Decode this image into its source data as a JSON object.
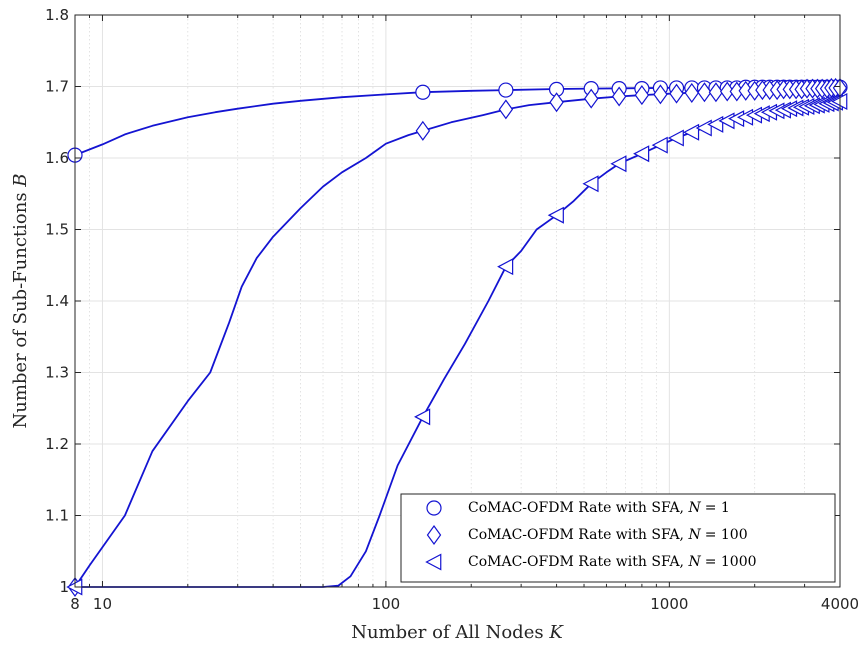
{
  "chart_data": {
    "type": "line",
    "xlabel": "Number of All Nodes",
    "xlabel_var": "K",
    "ylabel": "Number of Sub-Functions",
    "ylabel_var": "B",
    "xscale": "log",
    "xlim": [
      8,
      4000
    ],
    "ylim": [
      1,
      1.8
    ],
    "xticks": [
      8,
      10,
      100,
      1000,
      4000
    ],
    "xtick_labels": [
      "8",
      "10",
      "100",
      "1000",
      "4000"
    ],
    "yticks": [
      1,
      1.1,
      1.2,
      1.3,
      1.4,
      1.5,
      1.6,
      1.7,
      1.8
    ],
    "ytick_labels": [
      "1",
      "1.1",
      "1.2",
      "1.3",
      "1.4",
      "1.5",
      "1.6",
      "1.7",
      "1.8"
    ],
    "grid": true,
    "legend_position": "bottom-right",
    "line_color": "#1414d2",
    "series": [
      {
        "name": "CoMAC-OFDM Rate with SFA, N = 1",
        "legend_prefix": "CoMAC-OFDM Rate with SFA, ",
        "legend_var": "N",
        "legend_value": "= 1",
        "marker": "circle",
        "line": [
          [
            8,
            1.604
          ],
          [
            10,
            1.619
          ],
          [
            12,
            1.633
          ],
          [
            15,
            1.645
          ],
          [
            20,
            1.657
          ],
          [
            25,
            1.664
          ],
          [
            30,
            1.669
          ],
          [
            40,
            1.676
          ],
          [
            50,
            1.68
          ],
          [
            70,
            1.685
          ],
          [
            100,
            1.689
          ],
          [
            135,
            1.692
          ],
          [
            200,
            1.694
          ],
          [
            265,
            1.695
          ],
          [
            400,
            1.6965
          ],
          [
            530,
            1.697
          ],
          [
            1000,
            1.698
          ],
          [
            2000,
            1.6985
          ],
          [
            4000,
            1.699
          ]
        ],
        "markers": [
          [
            8,
            1.604
          ],
          [
            135,
            1.692
          ],
          [
            265,
            1.695
          ],
          [
            400,
            1.696
          ],
          [
            530,
            1.697
          ],
          [
            665,
            1.697
          ],
          [
            800,
            1.697
          ],
          [
            930,
            1.698
          ],
          [
            1060,
            1.698
          ],
          [
            1200,
            1.698
          ],
          [
            1330,
            1.698
          ],
          [
            1460,
            1.698
          ],
          [
            1600,
            1.698
          ],
          [
            1730,
            1.698
          ],
          [
            1860,
            1.699
          ],
          [
            2000,
            1.699
          ],
          [
            2130,
            1.699
          ],
          [
            2260,
            1.699
          ],
          [
            2400,
            1.699
          ],
          [
            2530,
            1.699
          ],
          [
            2660,
            1.699
          ],
          [
            2800,
            1.699
          ],
          [
            2930,
            1.699
          ],
          [
            3060,
            1.699
          ],
          [
            3200,
            1.699
          ],
          [
            3330,
            1.699
          ],
          [
            3460,
            1.699
          ],
          [
            3600,
            1.699
          ],
          [
            3730,
            1.699
          ],
          [
            3860,
            1.699
          ],
          [
            4000,
            1.699
          ]
        ]
      },
      {
        "name": "CoMAC-OFDM Rate with SFA, N = 100",
        "legend_prefix": "CoMAC-OFDM Rate with SFA, ",
        "legend_var": "N",
        "legend_value": "= 100",
        "marker": "diamond",
        "line": [
          [
            8,
            1.0
          ],
          [
            9,
            1.03
          ],
          [
            12,
            1.1
          ],
          [
            15,
            1.19
          ],
          [
            20,
            1.26
          ],
          [
            24,
            1.3
          ],
          [
            28,
            1.37
          ],
          [
            31,
            1.42
          ],
          [
            35,
            1.46
          ],
          [
            40,
            1.49
          ],
          [
            50,
            1.53
          ],
          [
            60,
            1.56
          ],
          [
            70,
            1.58
          ],
          [
            85,
            1.6
          ],
          [
            100,
            1.62
          ],
          [
            120,
            1.632
          ],
          [
            135,
            1.638
          ],
          [
            170,
            1.65
          ],
          [
            220,
            1.66
          ],
          [
            265,
            1.668
          ],
          [
            320,
            1.674
          ],
          [
            400,
            1.678
          ],
          [
            530,
            1.683
          ],
          [
            665,
            1.686
          ],
          [
            800,
            1.688
          ],
          [
            1000,
            1.69
          ],
          [
            1500,
            1.693
          ],
          [
            2000,
            1.695
          ],
          [
            3000,
            1.697
          ],
          [
            4000,
            1.698
          ]
        ],
        "markers": [
          [
            8,
            1.0
          ],
          [
            135,
            1.638
          ],
          [
            265,
            1.668
          ],
          [
            400,
            1.678
          ],
          [
            530,
            1.683
          ],
          [
            665,
            1.686
          ],
          [
            800,
            1.688
          ],
          [
            930,
            1.689
          ],
          [
            1060,
            1.69
          ],
          [
            1200,
            1.691
          ],
          [
            1330,
            1.692
          ],
          [
            1460,
            1.692
          ],
          [
            1600,
            1.693
          ],
          [
            1730,
            1.693
          ],
          [
            1860,
            1.694
          ],
          [
            2000,
            1.694
          ],
          [
            2130,
            1.695
          ],
          [
            2260,
            1.695
          ],
          [
            2400,
            1.695
          ],
          [
            2530,
            1.696
          ],
          [
            2660,
            1.696
          ],
          [
            2800,
            1.696
          ],
          [
            2930,
            1.696
          ],
          [
            3060,
            1.697
          ],
          [
            3200,
            1.697
          ],
          [
            3330,
            1.697
          ],
          [
            3460,
            1.697
          ],
          [
            3600,
            1.697
          ],
          [
            3730,
            1.698
          ],
          [
            3860,
            1.698
          ],
          [
            4000,
            1.698
          ]
        ]
      },
      {
        "name": "CoMAC-OFDM Rate with SFA, N = 1000",
        "legend_prefix": "CoMAC-OFDM Rate with SFA, ",
        "legend_var": "N",
        "legend_value": "= 1000",
        "marker": "triangle-left",
        "line": [
          [
            8,
            1.0
          ],
          [
            20,
            1.0
          ],
          [
            40,
            1.0
          ],
          [
            60,
            1.0
          ],
          [
            68,
            1.002
          ],
          [
            75,
            1.015
          ],
          [
            85,
            1.05
          ],
          [
            95,
            1.1
          ],
          [
            110,
            1.17
          ],
          [
            135,
            1.238
          ],
          [
            160,
            1.29
          ],
          [
            190,
            1.34
          ],
          [
            230,
            1.4
          ],
          [
            265,
            1.448
          ],
          [
            300,
            1.47
          ],
          [
            340,
            1.5
          ],
          [
            400,
            1.52
          ],
          [
            460,
            1.54
          ],
          [
            530,
            1.564
          ],
          [
            600,
            1.58
          ],
          [
            665,
            1.592
          ],
          [
            800,
            1.606
          ],
          [
            930,
            1.618
          ],
          [
            1060,
            1.628
          ],
          [
            1200,
            1.636
          ],
          [
            1400,
            1.645
          ],
          [
            1600,
            1.652
          ],
          [
            2000,
            1.66
          ],
          [
            2500,
            1.667
          ],
          [
            3000,
            1.672
          ],
          [
            3500,
            1.676
          ],
          [
            4000,
            1.679
          ]
        ],
        "markers": [
          [
            8,
            1.0
          ],
          [
            135,
            1.238
          ],
          [
            265,
            1.448
          ],
          [
            400,
            1.52
          ],
          [
            530,
            1.564
          ],
          [
            665,
            1.592
          ],
          [
            800,
            1.606
          ],
          [
            930,
            1.618
          ],
          [
            1060,
            1.628
          ],
          [
            1200,
            1.636
          ],
          [
            1330,
            1.642
          ],
          [
            1460,
            1.647
          ],
          [
            1600,
            1.652
          ],
          [
            1730,
            1.655
          ],
          [
            1860,
            1.657
          ],
          [
            2000,
            1.66
          ],
          [
            2130,
            1.662
          ],
          [
            2260,
            1.664
          ],
          [
            2400,
            1.666
          ],
          [
            2530,
            1.667
          ],
          [
            2660,
            1.669
          ],
          [
            2800,
            1.67
          ],
          [
            2930,
            1.671
          ],
          [
            3060,
            1.672
          ],
          [
            3200,
            1.673
          ],
          [
            3330,
            1.674
          ],
          [
            3460,
            1.675
          ],
          [
            3600,
            1.676
          ],
          [
            3730,
            1.677
          ],
          [
            3860,
            1.678
          ],
          [
            4000,
            1.679
          ]
        ]
      }
    ]
  }
}
